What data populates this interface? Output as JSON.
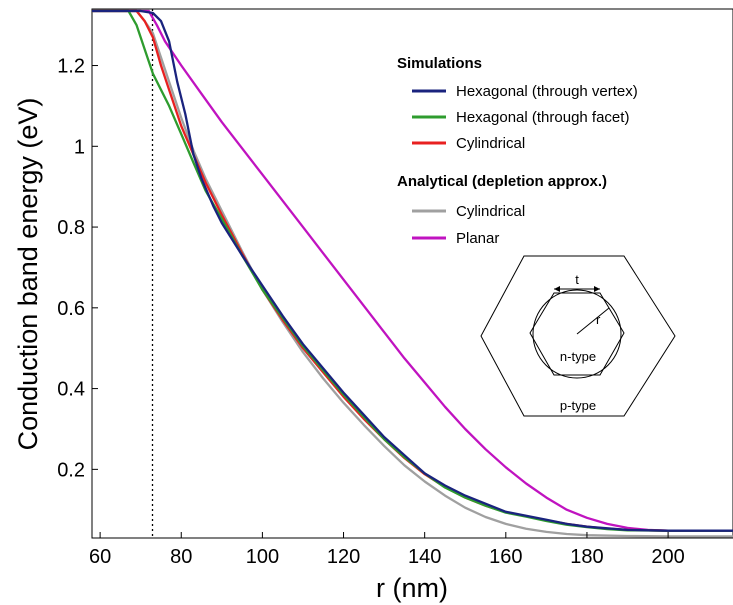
{
  "chart_data": {
    "type": "line",
    "title": "",
    "xlabel": "r (nm)",
    "ylabel": "Conduction band energy (eV)",
    "xlim": [
      58,
      216
    ],
    "ylim": [
      0.03,
      1.34
    ],
    "xticks": [
      "60",
      "80",
      "100",
      "120",
      "140",
      "160",
      "180",
      "200"
    ],
    "yticks": [
      "0.2",
      "0.4",
      "0.6",
      "0.8",
      "1",
      "1.2"
    ],
    "grid": false,
    "legend_position": "right",
    "reference_line": {
      "x": 72.5,
      "style": "dotted"
    },
    "legend_groups": [
      {
        "heading": "Simulations",
        "entries": [
          0,
          1,
          2
        ]
      },
      {
        "heading": "Analytical (depletion approx.)",
        "entries": [
          3,
          4
        ]
      }
    ],
    "series": [
      {
        "name": "Hexagonal (through vertex)",
        "color": "#1a237e",
        "points": [
          [
            58,
            1.335
          ],
          [
            70,
            1.335
          ],
          [
            73,
            1.33
          ],
          [
            75,
            1.31
          ],
          [
            77,
            1.26
          ],
          [
            79,
            1.16
          ],
          [
            81,
            1.08
          ],
          [
            83,
            0.98
          ],
          [
            85,
            0.92
          ],
          [
            88,
            0.85
          ],
          [
            90,
            0.81
          ],
          [
            95,
            0.73
          ],
          [
            100,
            0.655
          ],
          [
            105,
            0.58
          ],
          [
            110,
            0.51
          ],
          [
            115,
            0.45
          ],
          [
            120,
            0.39
          ],
          [
            125,
            0.335
          ],
          [
            130,
            0.28
          ],
          [
            135,
            0.235
          ],
          [
            140,
            0.19
          ],
          [
            145,
            0.16
          ],
          [
            150,
            0.135
          ],
          [
            155,
            0.115
          ],
          [
            160,
            0.095
          ],
          [
            165,
            0.085
          ],
          [
            170,
            0.075
          ],
          [
            175,
            0.065
          ],
          [
            180,
            0.058
          ],
          [
            185,
            0.054
          ],
          [
            190,
            0.05
          ],
          [
            200,
            0.048
          ],
          [
            216,
            0.048
          ]
        ]
      },
      {
        "name": "Hexagonal (through facet)",
        "color": "#2e9c2e",
        "points": [
          [
            58,
            1.335
          ],
          [
            67,
            1.335
          ],
          [
            69,
            1.3
          ],
          [
            71,
            1.24
          ],
          [
            73,
            1.18
          ],
          [
            75,
            1.14
          ],
          [
            77,
            1.1
          ],
          [
            80,
            1.03
          ],
          [
            83,
            0.96
          ],
          [
            86,
            0.89
          ],
          [
            90,
            0.82
          ],
          [
            95,
            0.73
          ],
          [
            100,
            0.645
          ],
          [
            105,
            0.575
          ],
          [
            110,
            0.505
          ],
          [
            115,
            0.445
          ],
          [
            120,
            0.385
          ],
          [
            125,
            0.33
          ],
          [
            130,
            0.275
          ],
          [
            135,
            0.23
          ],
          [
            140,
            0.19
          ],
          [
            145,
            0.155
          ],
          [
            150,
            0.13
          ],
          [
            155,
            0.11
          ],
          [
            160,
            0.093
          ],
          [
            165,
            0.083
          ],
          [
            170,
            0.072
          ],
          [
            175,
            0.063
          ],
          [
            180,
            0.057
          ],
          [
            185,
            0.052
          ],
          [
            190,
            0.049
          ],
          [
            200,
            0.048
          ],
          [
            216,
            0.048
          ]
        ]
      },
      {
        "name": "Cylindrical",
        "color": "#e82020",
        "points": [
          [
            58,
            1.335
          ],
          [
            69,
            1.335
          ],
          [
            71,
            1.31
          ],
          [
            73,
            1.27
          ],
          [
            75,
            1.2
          ],
          [
            77,
            1.14
          ],
          [
            80,
            1.05
          ],
          [
            83,
            0.98
          ],
          [
            86,
            0.91
          ],
          [
            90,
            0.83
          ],
          [
            95,
            0.735
          ],
          [
            100,
            0.645
          ],
          [
            105,
            0.57
          ],
          [
            110,
            0.5
          ],
          [
            115,
            0.44
          ],
          [
            120,
            0.38
          ],
          [
            125,
            0.325
          ],
          [
            130,
            0.275
          ],
          [
            135,
            0.228
          ],
          [
            140,
            0.188
          ],
          [
            145,
            0.156
          ],
          [
            150,
            0.13
          ],
          [
            155,
            0.11
          ],
          [
            160,
            0.094
          ],
          [
            165,
            0.084
          ],
          [
            170,
            0.074
          ],
          [
            175,
            0.065
          ],
          [
            180,
            0.058
          ],
          [
            185,
            0.053
          ],
          [
            190,
            0.05
          ],
          [
            200,
            0.048
          ],
          [
            216,
            0.048
          ]
        ]
      },
      {
        "name": "Cylindrical",
        "color": "#a0a0a0",
        "points": [
          [
            58,
            1.335
          ],
          [
            69,
            1.335
          ],
          [
            71,
            1.31
          ],
          [
            73,
            1.28
          ],
          [
            75,
            1.22
          ],
          [
            77,
            1.16
          ],
          [
            80,
            1.07
          ],
          [
            83,
            0.99
          ],
          [
            86,
            0.92
          ],
          [
            90,
            0.84
          ],
          [
            95,
            0.74
          ],
          [
            100,
            0.645
          ],
          [
            105,
            0.565
          ],
          [
            110,
            0.49
          ],
          [
            115,
            0.425
          ],
          [
            120,
            0.365
          ],
          [
            125,
            0.31
          ],
          [
            130,
            0.258
          ],
          [
            135,
            0.21
          ],
          [
            140,
            0.17
          ],
          [
            145,
            0.135
          ],
          [
            150,
            0.105
          ],
          [
            155,
            0.082
          ],
          [
            160,
            0.065
          ],
          [
            165,
            0.053
          ],
          [
            170,
            0.045
          ],
          [
            175,
            0.04
          ],
          [
            180,
            0.037
          ],
          [
            190,
            0.035
          ],
          [
            200,
            0.034
          ],
          [
            216,
            0.034
          ]
        ]
      },
      {
        "name": "Planar",
        "color": "#c013c0",
        "points": [
          [
            58,
            1.335
          ],
          [
            72,
            1.335
          ],
          [
            74,
            1.3
          ],
          [
            76,
            1.26
          ],
          [
            78,
            1.23
          ],
          [
            80,
            1.2
          ],
          [
            85,
            1.13
          ],
          [
            90,
            1.06
          ],
          [
            95,
            0.995
          ],
          [
            100,
            0.93
          ],
          [
            105,
            0.865
          ],
          [
            110,
            0.8
          ],
          [
            115,
            0.735
          ],
          [
            120,
            0.67
          ],
          [
            125,
            0.605
          ],
          [
            130,
            0.54
          ],
          [
            135,
            0.475
          ],
          [
            140,
            0.415
          ],
          [
            145,
            0.355
          ],
          [
            150,
            0.3
          ],
          [
            155,
            0.25
          ],
          [
            160,
            0.205
          ],
          [
            165,
            0.165
          ],
          [
            170,
            0.13
          ],
          [
            175,
            0.1
          ],
          [
            180,
            0.08
          ],
          [
            185,
            0.065
          ],
          [
            190,
            0.055
          ],
          [
            195,
            0.05
          ],
          [
            200,
            0.048
          ],
          [
            216,
            0.048
          ]
        ]
      }
    ],
    "inset": {
      "labels": {
        "t": "t",
        "r": "r",
        "inner": "n-type",
        "outer": "p-type"
      }
    }
  }
}
